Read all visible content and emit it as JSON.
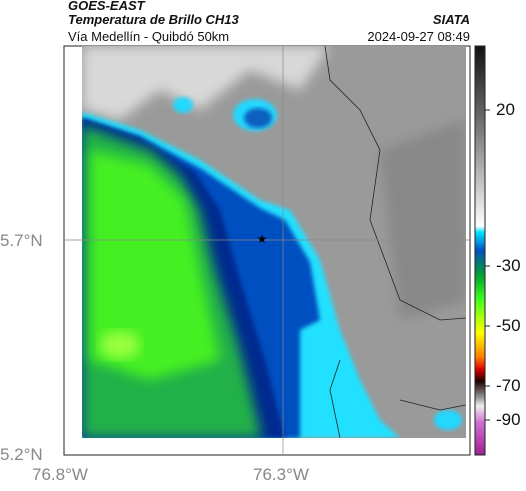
{
  "header": {
    "satellite": "GOES-EAST",
    "product": "Temperatura de Brillo CH13",
    "agency": "SIATA",
    "route": "Vía Medellín - Quibdó 50km",
    "timestamp": "2024-09-27 08:49"
  },
  "axes": {
    "x_ticks": [
      "76.8°W",
      "76.3°W"
    ],
    "y_ticks": [
      "5.7°N",
      "5.2°N"
    ]
  },
  "colorbar": {
    "ticks": [
      20,
      -30,
      -50,
      -70,
      -90
    ]
  }
}
